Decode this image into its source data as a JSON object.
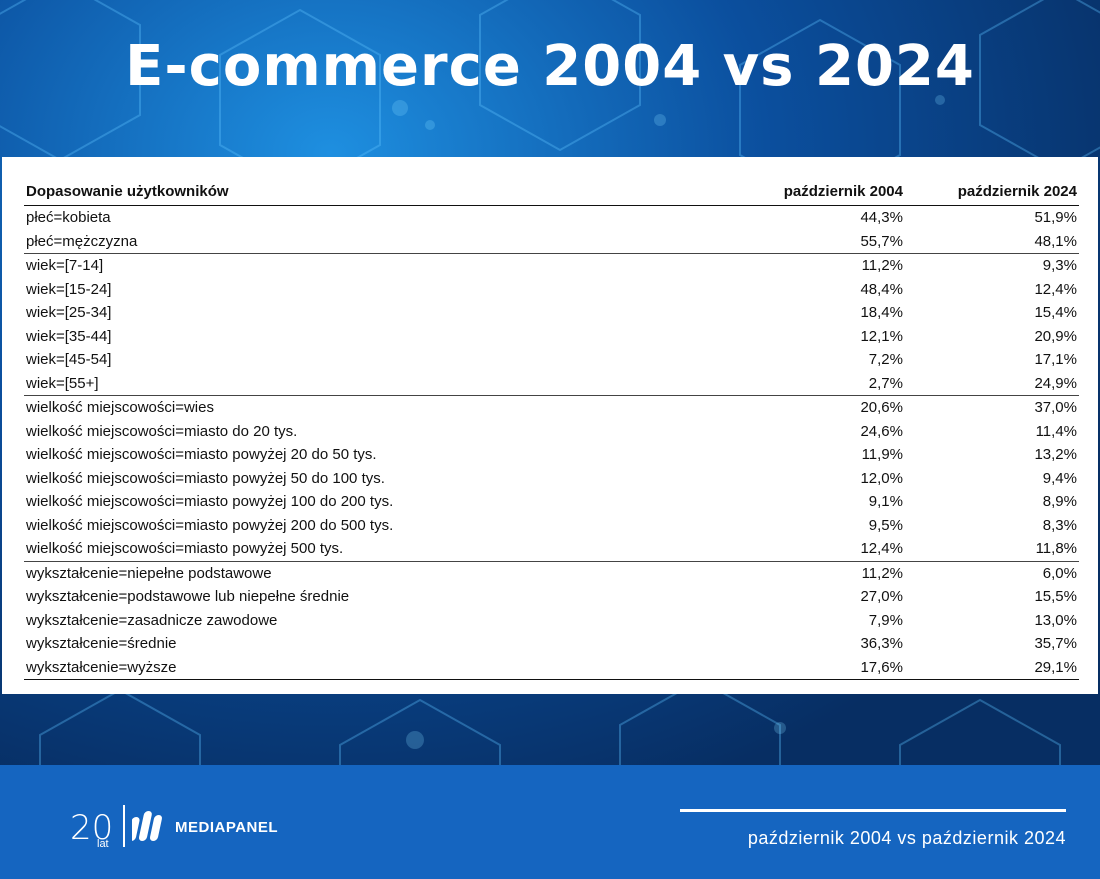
{
  "title": "E-commerce 2004 vs 2024",
  "chart_data": {
    "type": "table",
    "columns": [
      "Dopasowanie użytkowników",
      "październik 2004",
      "październik 2024"
    ],
    "rows": [
      {
        "label": "płeć=kobieta",
        "v2004": "44,3%",
        "v2024": "51,9%",
        "group_start": false
      },
      {
        "label": "płeć=mężczyzna",
        "v2004": "55,7%",
        "v2024": "48,1%",
        "group_start": false
      },
      {
        "label": "wiek=[7-14]",
        "v2004": "11,2%",
        "v2024": "9,3%",
        "group_start": true
      },
      {
        "label": "wiek=[15-24]",
        "v2004": "48,4%",
        "v2024": "12,4%",
        "group_start": false
      },
      {
        "label": "wiek=[25-34]",
        "v2004": "18,4%",
        "v2024": "15,4%",
        "group_start": false
      },
      {
        "label": "wiek=[35-44]",
        "v2004": "12,1%",
        "v2024": "20,9%",
        "group_start": false
      },
      {
        "label": "wiek=[45-54]",
        "v2004": "7,2%",
        "v2024": "17,1%",
        "group_start": false
      },
      {
        "label": "wiek=[55+]",
        "v2004": "2,7%",
        "v2024": "24,9%",
        "group_start": false
      },
      {
        "label": "wielkość miejscowości=wies",
        "v2004": "20,6%",
        "v2024": "37,0%",
        "group_start": true
      },
      {
        "label": "wielkość miejscowości=miasto do 20 tys.",
        "v2004": "24,6%",
        "v2024": "11,4%",
        "group_start": false
      },
      {
        "label": "wielkość miejscowości=miasto powyżej 20 do 50 tys.",
        "v2004": "11,9%",
        "v2024": "13,2%",
        "group_start": false
      },
      {
        "label": "wielkość miejscowości=miasto powyżej 50 do 100 tys.",
        "v2004": "12,0%",
        "v2024": "9,4%",
        "group_start": false
      },
      {
        "label": "wielkość miejscowości=miasto powyżej 100 do 200 tys.",
        "v2004": "9,1%",
        "v2024": "8,9%",
        "group_start": false
      },
      {
        "label": "wielkość miejscowości=miasto powyżej 200 do 500 tys.",
        "v2004": "9,5%",
        "v2024": "8,3%",
        "group_start": false
      },
      {
        "label": "wielkość miejscowości=miasto powyżej 500 tys.",
        "v2004": "12,4%",
        "v2024": "11,8%",
        "group_start": false
      },
      {
        "label": "wykształcenie=niepełne podstawowe",
        "v2004": "11,2%",
        "v2024": "6,0%",
        "group_start": true
      },
      {
        "label": "wykształcenie=podstawowe lub niepełne średnie",
        "v2004": "27,0%",
        "v2024": "15,5%",
        "group_start": false
      },
      {
        "label": "wykształcenie=zasadnicze zawodowe",
        "v2004": "7,9%",
        "v2024": "13,0%",
        "group_start": false
      },
      {
        "label": "wykształcenie=średnie",
        "v2004": "36,3%",
        "v2024": "35,7%",
        "group_start": false
      },
      {
        "label": "wykształcenie=wyższe",
        "v2004": "17,6%",
        "v2024": "29,1%",
        "group_start": false
      }
    ]
  },
  "footer": {
    "years_number": "20",
    "years_label": "lat",
    "brand": "MEDIAPANEL",
    "subtitle": "październik 2004 vs październik 2024"
  },
  "colors": {
    "header_bg": "#0b4f9e",
    "footer_bg": "#1565c0",
    "panel_bg": "#ffffff"
  }
}
